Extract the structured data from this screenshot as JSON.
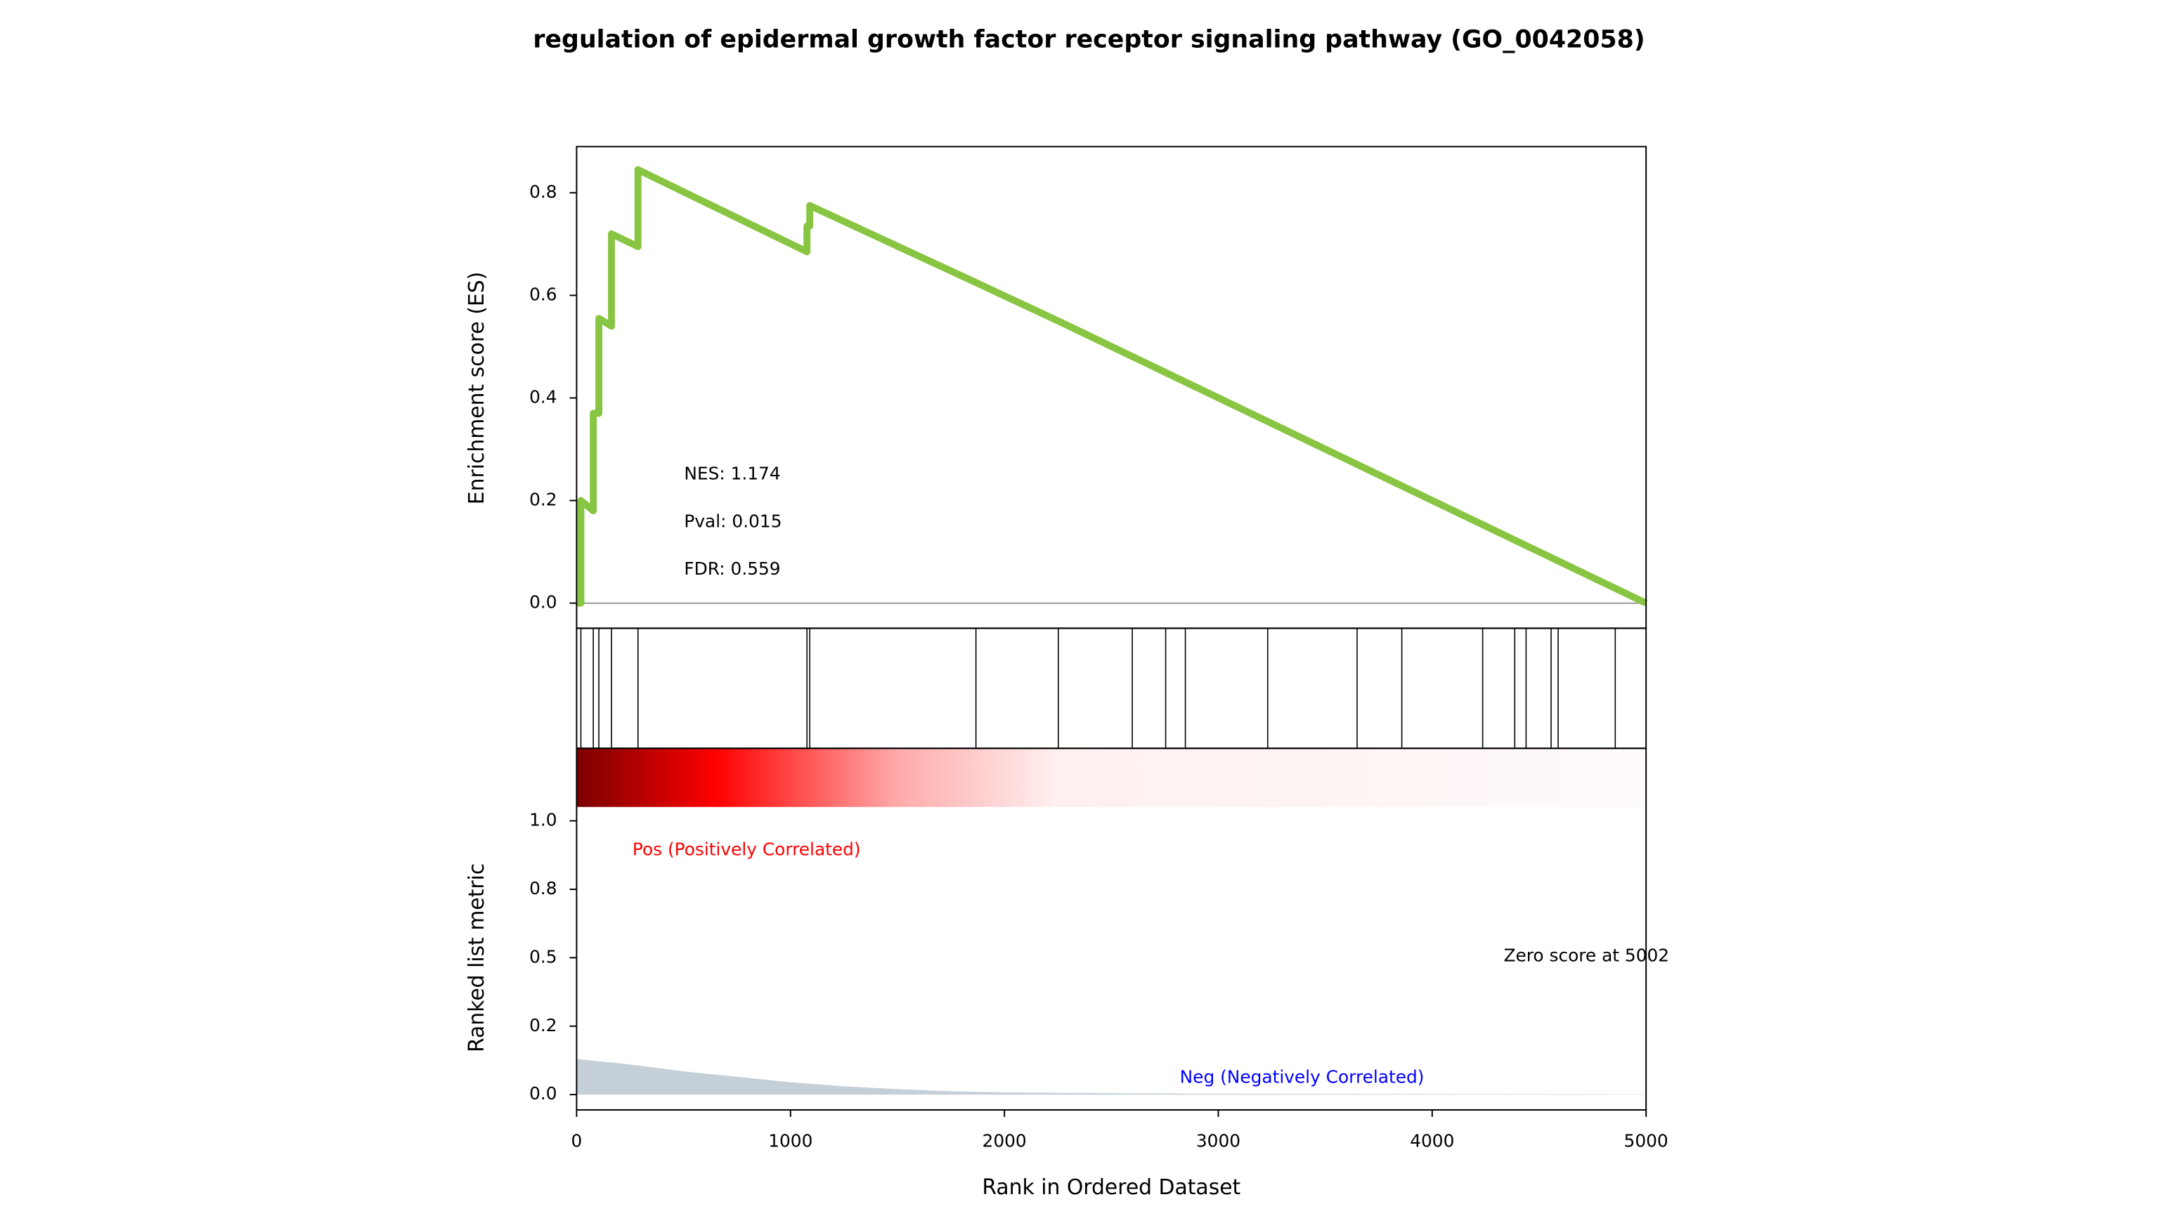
{
  "chart_data": {
    "type": "gsea",
    "title": "regulation of epidermal growth factor receptor signaling pathway (GO_0042058)",
    "xlabel": "Rank in Ordered Dataset",
    "xlim": [
      0,
      5000
    ],
    "xticks": [
      0,
      1000,
      2000,
      3000,
      4000,
      5000
    ],
    "es": {
      "ylabel": "Enrichment score (ES)",
      "ylim": [
        -0.049,
        0.89
      ],
      "yticks": [
        {
          "value": 0,
          "label": "0.0"
        },
        0.2,
        0.4,
        0.6,
        0.8
      ],
      "color": "#88c542",
      "x": [
        0,
        20,
        20,
        78,
        78,
        104,
        104,
        163,
        163,
        287,
        287,
        1077,
        1077,
        1090,
        1090,
        1867,
        2252,
        5000
      ],
      "values": [
        0,
        0,
        0.2,
        0.18,
        0.37,
        0.37,
        0.555,
        0.54,
        0.72,
        0.695,
        0.845,
        0.685,
        0.735,
        0.735,
        0.775,
        0.625,
        0.55,
        0
      ]
    },
    "hits": [
      20,
      78,
      104,
      163,
      287,
      1077,
      1090,
      1867,
      2252,
      2598,
      2754,
      2846,
      3231,
      3649,
      3858,
      4236,
      4386,
      4439,
      4556,
      4589,
      4856
    ],
    "annotations": [
      "NES: 1.174",
      "Pval: 0.015",
      "FDR: 0.559"
    ],
    "ranked": {
      "ylabel": "Ranked list metric",
      "ylim": [
        -0.056,
        1.265
      ],
      "yticks": [
        {
          "value": 0,
          "label": "0.0"
        },
        {
          "value": 0.25,
          "label": "0.2"
        },
        0.5,
        {
          "value": 0.75,
          "label": "0.8"
        },
        {
          "value": 1,
          "label": "1.0"
        }
      ],
      "color": "#c5cfd8",
      "x": [
        0,
        250,
        500,
        750,
        1000,
        1250,
        1500,
        1750,
        2000,
        2500,
        3000,
        4000,
        5000
      ],
      "values": [
        0.13,
        0.11,
        0.085,
        0.065,
        0.045,
        0.03,
        0.02,
        0.012,
        0.008,
        0.005,
        0.003,
        0.002,
        0.001
      ]
    },
    "pos_label": "Pos (Positively Correlated)",
    "neg_label": "Neg (Negatively Correlated)",
    "zero_label": "Zero score at 5002"
  }
}
